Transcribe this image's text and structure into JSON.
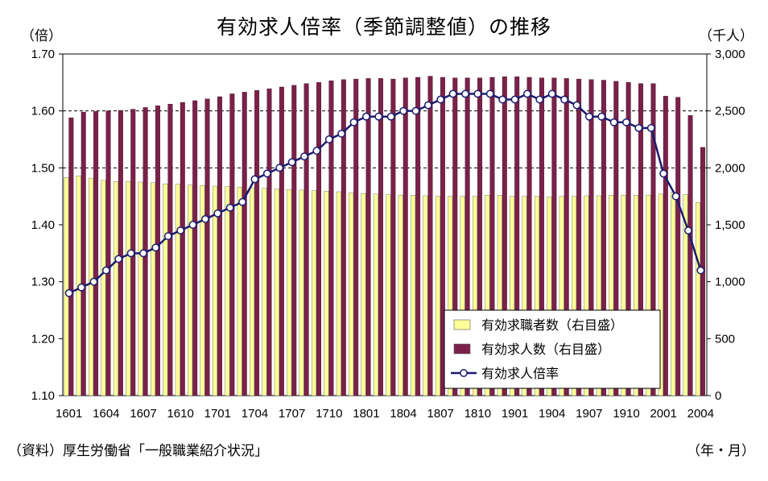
{
  "chart_data": {
    "type": "bar+line",
    "title": "有効求人倍率（季節調整値）の推移",
    "left_unit": "（倍）",
    "right_unit": "（千人）",
    "source": "（資料）厚生労働省「一般職業紹介状況」",
    "period_label": "（年・月）",
    "ylim_left": [
      1.1,
      1.7
    ],
    "yticks_left": [
      "1.10",
      "1.20",
      "1.30",
      "1.40",
      "1.50",
      "1.60",
      "1.70"
    ],
    "ylim_right": [
      0,
      3000
    ],
    "yticks_right": [
      "0",
      "500",
      "1,000",
      "1,500",
      "2,000",
      "2,500",
      "3,000"
    ],
    "x_tick_labels": [
      "1601",
      "1604",
      "1607",
      "1610",
      "1701",
      "1704",
      "1707",
      "1710",
      "1801",
      "1804",
      "1807",
      "1810",
      "1901",
      "1904",
      "1907",
      "1910",
      "2001",
      "2004"
    ],
    "categories": [
      "1601",
      "1602",
      "1603",
      "1604",
      "1605",
      "1606",
      "1607",
      "1608",
      "1609",
      "1610",
      "1611",
      "1612",
      "1701",
      "1702",
      "1703",
      "1704",
      "1705",
      "1706",
      "1707",
      "1708",
      "1709",
      "1710",
      "1711",
      "1712",
      "1801",
      "1802",
      "1803",
      "1804",
      "1805",
      "1806",
      "1807",
      "1808",
      "1809",
      "1810",
      "1811",
      "1812",
      "1901",
      "1902",
      "1903",
      "1904",
      "1905",
      "1906",
      "1907",
      "1908",
      "1909",
      "1910",
      "1911",
      "1912",
      "2001",
      "2002",
      "2003",
      "2004"
    ],
    "gridlines_at_left": [
      1.5,
      1.6
    ],
    "series": [
      {
        "name": "有効求職者数（右目盛）",
        "kind": "bar",
        "axis": "right",
        "color": "#ffff99",
        "values": [
          1915,
          1930,
          1910,
          1890,
          1880,
          1880,
          1875,
          1870,
          1860,
          1855,
          1850,
          1845,
          1840,
          1835,
          1830,
          1825,
          1820,
          1815,
          1810,
          1805,
          1800,
          1795,
          1790,
          1780,
          1775,
          1770,
          1765,
          1760,
          1760,
          1755,
          1750,
          1750,
          1750,
          1750,
          1760,
          1760,
          1750,
          1750,
          1750,
          1745,
          1750,
          1750,
          1755,
          1755,
          1760,
          1760,
          1760,
          1760,
          1770,
          1785,
          1765,
          1695
        ]
      },
      {
        "name": "有効求人数（右目盛）",
        "kind": "bar",
        "axis": "right",
        "color": "#7b2149",
        "values": [
          2440,
          2490,
          2495,
          2500,
          2505,
          2515,
          2530,
          2545,
          2560,
          2575,
          2590,
          2605,
          2625,
          2650,
          2665,
          2680,
          2695,
          2710,
          2725,
          2740,
          2750,
          2765,
          2775,
          2780,
          2785,
          2785,
          2780,
          2790,
          2795,
          2805,
          2795,
          2790,
          2790,
          2790,
          2795,
          2800,
          2800,
          2795,
          2790,
          2790,
          2785,
          2780,
          2775,
          2770,
          2760,
          2750,
          2740,
          2740,
          2630,
          2620,
          2460,
          2180
        ]
      },
      {
        "name": "有効求人倍率",
        "kind": "line",
        "axis": "left",
        "color": "#1b1b6e",
        "values": [
          1.28,
          1.29,
          1.3,
          1.32,
          1.34,
          1.35,
          1.35,
          1.36,
          1.38,
          1.39,
          1.4,
          1.41,
          1.42,
          1.43,
          1.44,
          1.48,
          1.49,
          1.5,
          1.51,
          1.52,
          1.53,
          1.55,
          1.56,
          1.58,
          1.59,
          1.59,
          1.59,
          1.6,
          1.6,
          1.61,
          1.62,
          1.63,
          1.63,
          1.63,
          1.63,
          1.62,
          1.62,
          1.63,
          1.62,
          1.63,
          1.62,
          1.61,
          1.59,
          1.59,
          1.58,
          1.58,
          1.57,
          1.57,
          1.49,
          1.45,
          1.39,
          1.32
        ]
      }
    ],
    "legend": {
      "position": "bottom-right",
      "items": [
        {
          "label": "有効求職者数（右目盛）",
          "color": "#ffff99",
          "kind": "bar"
        },
        {
          "label": "有効求人数（右目盛）",
          "color": "#7b2149",
          "kind": "bar"
        },
        {
          "label": "有効求人倍率",
          "color": "#1b1b6e",
          "kind": "line"
        }
      ]
    }
  }
}
